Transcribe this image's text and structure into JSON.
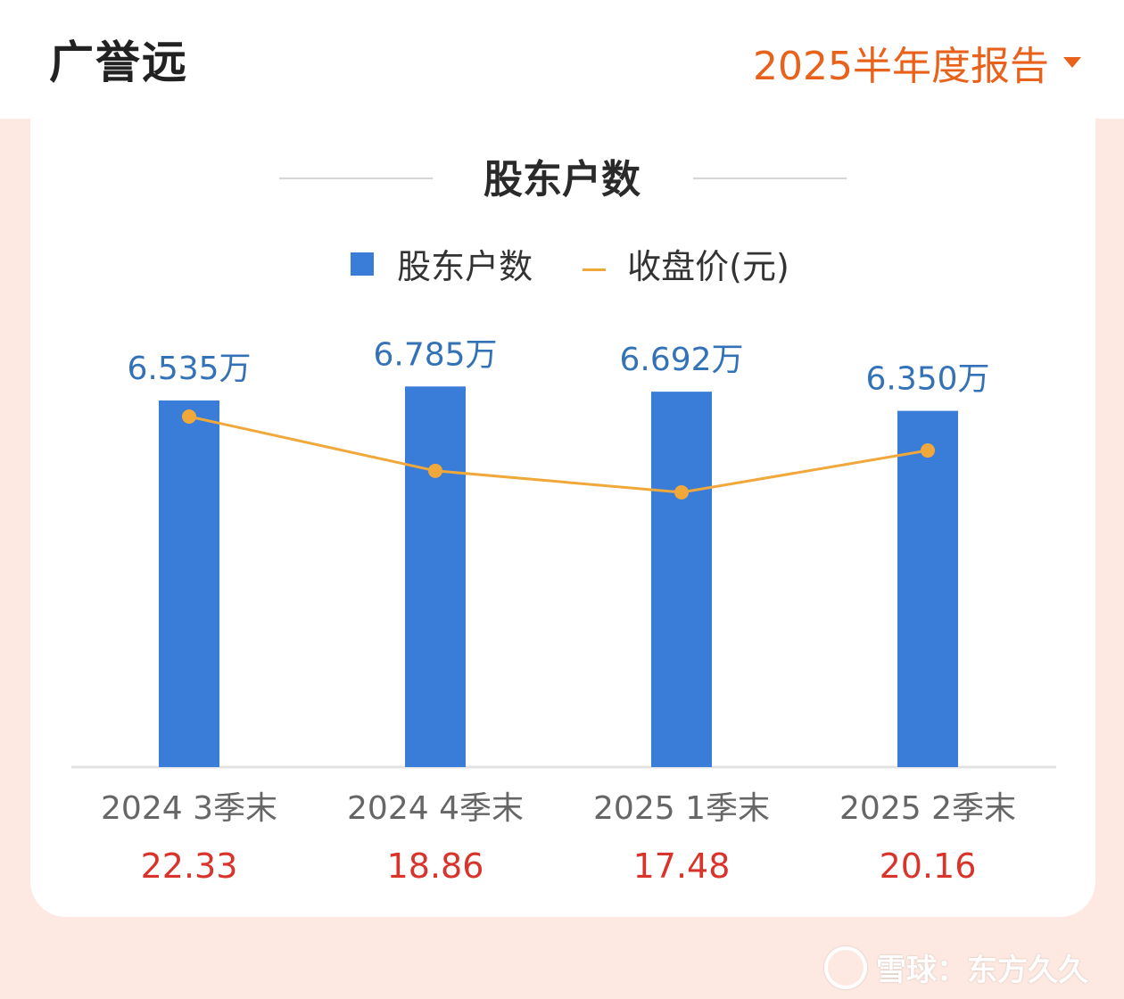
{
  "header": {
    "company": "广誉远",
    "report_selector": "2025半年度报告"
  },
  "section_title": "股东户数",
  "legend": {
    "bar_label": "股东户数",
    "line_label": "收盘价(元)"
  },
  "colors": {
    "bar": "#3a7dd8",
    "bar_label": "#3472b8",
    "line": "#f0a83a",
    "price": "#d9342b",
    "accent": "#e8621c"
  },
  "chart_data": {
    "type": "bar",
    "categories": [
      "2024 3季末",
      "2024 4季末",
      "2025 1季末",
      "2025 2季末"
    ],
    "series": [
      {
        "name": "股东户数",
        "type": "bar",
        "values": [
          6.535,
          6.785,
          6.692,
          6.35
        ],
        "labels": [
          "6.535万",
          "6.785万",
          "6.692万",
          "6.350万"
        ]
      },
      {
        "name": "收盘价(元)",
        "type": "line",
        "values": [
          22.33,
          18.86,
          17.48,
          20.16
        ],
        "labels": [
          "22.33",
          "18.86",
          "17.48",
          "20.16"
        ]
      }
    ]
  },
  "watermark": "雪球：东方久久"
}
